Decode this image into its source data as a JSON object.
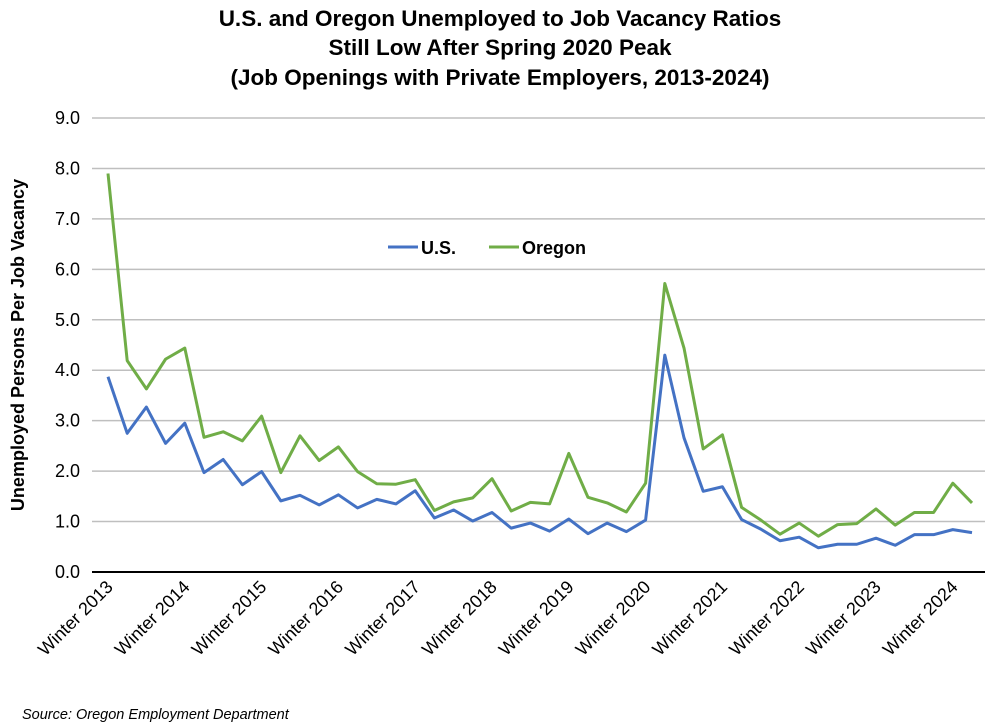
{
  "chart_data": {
    "type": "line",
    "title": [
      "U.S. and Oregon Unemployed to Job Vacancy Ratios",
      "Still Low After Spring 2020 Peak",
      "(Job Openings with Private Employers, 2013-2024)"
    ],
    "xlabel": "",
    "ylabel": "Unemployed Persons Per Job Vacancy",
    "ylim": [
      0,
      9
    ],
    "yticks": [
      "0.0",
      "1.0",
      "2.0",
      "3.0",
      "4.0",
      "5.0",
      "6.0",
      "7.0",
      "8.0",
      "9.0"
    ],
    "x_tick_labels": [
      "Winter 2013",
      "Winter 2014",
      "Winter 2015",
      "Winter 2016",
      "Winter 2017",
      "Winter 2018",
      "Winter 2019",
      "Winter 2020",
      "Winter 2021",
      "Winter 2022",
      "Winter 2023",
      "Winter 2024"
    ],
    "x_frequency": "quarterly",
    "grid": true,
    "legend_placement": "top-center",
    "series": [
      {
        "name": "U.S.",
        "color": "#4472C4",
        "values": [
          3.87,
          2.75,
          3.27,
          2.55,
          2.95,
          1.97,
          2.23,
          1.73,
          1.99,
          1.41,
          1.52,
          1.33,
          1.53,
          1.27,
          1.44,
          1.35,
          1.61,
          1.07,
          1.23,
          1.01,
          1.18,
          0.87,
          0.97,
          0.81,
          1.05,
          0.76,
          0.97,
          0.8,
          1.03,
          4.3,
          2.66,
          1.6,
          1.69,
          1.04,
          0.85,
          0.62,
          0.69,
          0.48,
          0.55,
          0.55,
          0.67,
          0.53,
          0.74,
          0.74,
          0.84,
          0.78
        ]
      },
      {
        "name": "Oregon",
        "color": "#70AD47",
        "values": [
          7.9,
          4.19,
          3.63,
          4.22,
          4.44,
          2.67,
          2.78,
          2.6,
          3.09,
          1.97,
          2.7,
          2.21,
          2.48,
          1.99,
          1.75,
          1.74,
          1.83,
          1.22,
          1.39,
          1.47,
          1.85,
          1.21,
          1.38,
          1.35,
          2.35,
          1.48,
          1.37,
          1.19,
          1.76,
          5.72,
          4.44,
          2.44,
          2.72,
          1.28,
          1.03,
          0.75,
          0.97,
          0.71,
          0.94,
          0.96,
          1.25,
          0.93,
          1.18,
          1.18,
          1.76,
          1.37
        ]
      }
    ],
    "source": "Source: Oregon Employment Department"
  }
}
